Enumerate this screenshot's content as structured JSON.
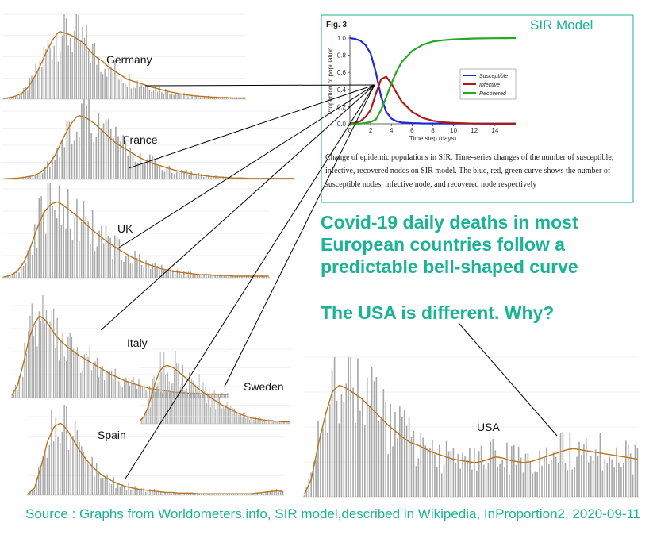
{
  "chart_data": [
    {
      "type": "line",
      "figure_label": "Fig. 3",
      "title": "SIR Model",
      "xlabel": "Time step (days)",
      "ylabel": "Proportion of population",
      "xlim": [
        0,
        16
      ],
      "ylim": [
        0,
        1.0
      ],
      "xticks": [
        0,
        2,
        4,
        6,
        8,
        10,
        12,
        14
      ],
      "yticks": [
        "0.0",
        "0.2",
        "0.4",
        "0.6",
        "0.8",
        "1.0"
      ],
      "legend_position": "right",
      "series": [
        {
          "name": "Susceptible",
          "color": "#1f2ad6",
          "x": [
            0,
            0.5,
            1,
            1.5,
            2,
            2.5,
            3,
            3.5,
            4,
            4.5,
            5,
            6,
            7,
            8,
            10,
            12,
            14,
            16
          ],
          "y": [
            1.0,
            0.99,
            0.97,
            0.92,
            0.82,
            0.6,
            0.32,
            0.14,
            0.06,
            0.03,
            0.015,
            0.008,
            0.005,
            0.004,
            0.003,
            0.003,
            0.003,
            0.003
          ]
        },
        {
          "name": "Infective",
          "color": "#b01818",
          "x": [
            0,
            0.5,
            1,
            1.5,
            2,
            2.5,
            3,
            3.5,
            4,
            4.5,
            5,
            6,
            7,
            8,
            9,
            10,
            12,
            14,
            16
          ],
          "y": [
            0.005,
            0.01,
            0.03,
            0.08,
            0.16,
            0.35,
            0.52,
            0.55,
            0.47,
            0.36,
            0.26,
            0.14,
            0.07,
            0.035,
            0.018,
            0.01,
            0.003,
            0.001,
            0.0
          ]
        },
        {
          "name": "Recovered",
          "color": "#22aa22",
          "x": [
            0,
            1,
            2,
            2.5,
            3,
            3.5,
            4,
            4.5,
            5,
            6,
            7,
            8,
            9,
            10,
            12,
            14,
            16
          ],
          "y": [
            0.0,
            0.002,
            0.02,
            0.05,
            0.16,
            0.31,
            0.47,
            0.61,
            0.72,
            0.85,
            0.92,
            0.96,
            0.975,
            0.985,
            0.995,
            0.998,
            1.0
          ]
        }
      ],
      "caption": "Change of epidemic populations in SIR. Time-series changes of the number of susceptible, infective, recovered nodes on SIR model. The blue, red, green curve shows the number of susceptible nodes, infective node, and recovered node respectively"
    },
    {
      "type": "bar",
      "description": "Daily deaths (bars) with moving-average line, per country",
      "series": [
        {
          "name": "Germany",
          "values": [
            2,
            4,
            8,
            15,
            30,
            55,
            85,
            120,
            150,
            170,
            165,
            160,
            150,
            140,
            120,
            105,
            95,
            80,
            70,
            60,
            50,
            45,
            40,
            35,
            30,
            26,
            22,
            18,
            15,
            12,
            10,
            8,
            7,
            6,
            5,
            4,
            4,
            3,
            3,
            3
          ]
        },
        {
          "name": "France",
          "values": [
            1,
            2,
            3,
            5,
            8,
            15,
            30,
            55,
            90,
            120,
            140,
            135,
            125,
            110,
            95,
            80,
            70,
            60,
            50,
            42,
            35,
            30,
            25,
            20,
            16,
            13,
            10,
            8,
            6,
            5,
            4,
            3,
            3,
            2,
            2,
            2,
            2,
            2,
            2,
            2
          ]
        },
        {
          "name": "UK",
          "values": [
            1,
            3,
            8,
            20,
            40,
            65,
            85,
            95,
            98,
            92,
            85,
            78,
            70,
            62,
            55,
            48,
            42,
            36,
            31,
            26,
            22,
            18,
            15,
            12,
            10,
            8,
            7,
            6,
            5,
            4,
            4,
            3,
            3,
            3,
            2,
            2,
            2,
            2,
            2,
            2
          ]
        },
        {
          "name": "Italy",
          "values": [
            3,
            15,
            40,
            70,
            90,
            100,
            95,
            85,
            75,
            68,
            62,
            57,
            52,
            48,
            44,
            40,
            36,
            32,
            28,
            25,
            22,
            19,
            17,
            15,
            13,
            11,
            10,
            9,
            8,
            7,
            6,
            6,
            5,
            5,
            5,
            4,
            4,
            4,
            4,
            4
          ]
        },
        {
          "name": "Sweden",
          "values": [
            5,
            12,
            25,
            45,
            65,
            80,
            88,
            90,
            88,
            85,
            80,
            75,
            70,
            65,
            60,
            55,
            50,
            46,
            42,
            38,
            34,
            30,
            27,
            24,
            21,
            18,
            15,
            13,
            11,
            9,
            8,
            7,
            6,
            5,
            5,
            4,
            4,
            3,
            3,
            3
          ]
        },
        {
          "name": "Spain",
          "values": [
            2,
            10,
            40,
            75,
            95,
            100,
            90,
            75,
            60,
            48,
            38,
            30,
            24,
            19,
            15,
            12,
            10,
            8,
            7,
            6,
            5,
            4,
            4,
            3,
            3,
            3,
            2,
            2,
            2,
            2,
            2,
            2,
            2,
            2,
            2,
            3,
            4,
            5,
            6,
            5
          ]
        },
        {
          "name": "USA",
          "values": [
            2,
            15,
            45,
            70,
            90,
            95,
            92,
            88,
            84,
            78,
            72,
            66,
            60,
            55,
            50,
            46,
            44,
            41,
            38,
            36,
            34,
            32,
            31,
            30,
            29,
            30,
            32,
            34,
            33,
            31,
            30,
            29,
            30,
            32,
            34,
            36,
            38,
            40,
            41,
            40,
            39,
            38,
            37,
            36,
            35,
            34,
            33,
            32
          ]
        }
      ]
    }
  ],
  "headlines": {
    "line1": "Covid-19 daily deaths in most European countries follow a predictable bell-shaped curve",
    "line2": "The USA is different. Why?"
  },
  "source": "Source : Graphs from Worldometers.info, SIR model,described in Wikipedia, InProportion2, 2020-09-11",
  "colors": {
    "accent_text": "#1ab394",
    "bar": "#a8a8a8",
    "trend": "#b8751e",
    "frame": "#1ab394"
  }
}
